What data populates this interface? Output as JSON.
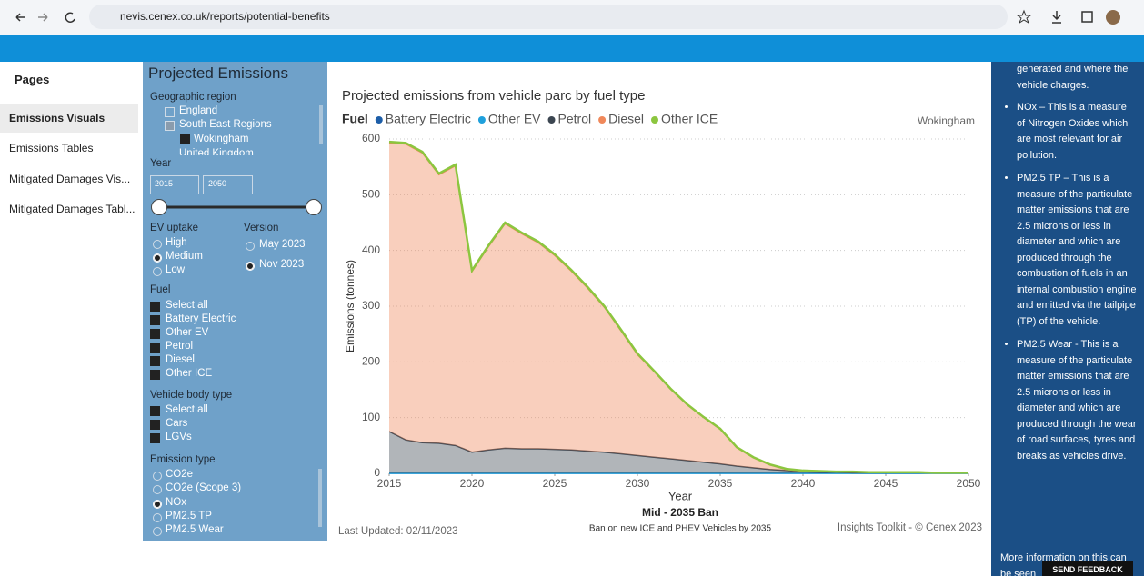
{
  "browser": {
    "url": "nevis.cenex.co.uk/reports/potential-benefits"
  },
  "nav": {
    "title": "Pages",
    "items": [
      "Emissions Visuals",
      "Emissions Tables",
      "Mitigated Damages Vis...",
      "Mitigated Damages Tabl..."
    ]
  },
  "filters": {
    "title": "Projected Emissions",
    "region_label": "Geographic region",
    "regions": [
      "England",
      "South East Regions",
      "Wokingham",
      "United Kingdom"
    ],
    "year_label": "Year",
    "year_from": "2015",
    "year_to": "2050",
    "ev_label": "EV uptake",
    "ev_options": [
      "High",
      "Medium",
      "Low"
    ],
    "version_label": "Version",
    "version_options": [
      "May 2023",
      "Nov 2023"
    ],
    "fuel_label": "Fuel",
    "fuel_options": [
      "Select all",
      "Battery Electric",
      "Other EV",
      "Petrol",
      "Diesel",
      "Other ICE"
    ],
    "body_label": "Vehicle body type",
    "body_options": [
      "Select all",
      "Cars",
      "LGVs"
    ],
    "emission_label": "Emission type",
    "emission_options": [
      "CO2e",
      "CO2e (Scope 3)",
      "NOx",
      "PM2.5 TP",
      "PM2.5 Wear"
    ]
  },
  "info": {
    "intro": "generated and where the vehicle charges.",
    "bullets": [
      "NOx – This is a measure of Nitrogen Oxides which are most relevant for air pollution.",
      "PM2.5 TP – This is a measure of the particulate matter emissions that are 2.5 microns or less in diameter and which are produced through the combustion of fuels in an internal combustion engine and emitted via the tailpipe (TP) of the vehicle.",
      "PM2.5 Wear - This is a measure of the particulate matter emissions that are 2.5 microns or less in diameter and which are produced through the wear of road surfaces, tyres and breaks as vehicles drive."
    ],
    "more": "More information on this can be seen",
    "feedback": "SEND FEEDBACK"
  },
  "chart_data": {
    "type": "area",
    "stacked": true,
    "grid": true,
    "title": "Projected emissions from vehicle parc by fuel type",
    "legend_title": "Fuel",
    "region": "Wokingham",
    "y_label": "Emissions (tonnes)",
    "x_label": "Year",
    "scenario": "Mid - 2035 Ban",
    "scenario_note": "Ban on new ICE and PHEV Vehicles by 2035",
    "updated": "Last Updated: 02/11/2023",
    "credit": "Insights Toolkit - © Cenex 2023",
    "xlim": [
      2015,
      2050
    ],
    "xticks": [
      2015,
      2020,
      2025,
      2030,
      2035,
      2040,
      2045,
      2050
    ],
    "ylim": [
      0,
      600
    ],
    "yticks": [
      0,
      100,
      200,
      300,
      400,
      500,
      600
    ],
    "x": [
      2015,
      2016,
      2017,
      2018,
      2019,
      2020,
      2021,
      2022,
      2023,
      2024,
      2025,
      2026,
      2027,
      2028,
      2029,
      2030,
      2031,
      2032,
      2033,
      2034,
      2035,
      2036,
      2037,
      2038,
      2039,
      2040,
      2041,
      2042,
      2043,
      2044,
      2045,
      2046,
      2047,
      2048,
      2049,
      2050
    ],
    "series": [
      {
        "name": "Battery Electric",
        "color": "#1d5ea8",
        "values": [
          0,
          0,
          0,
          0,
          0,
          0,
          0,
          0,
          0,
          0,
          0,
          0,
          0,
          0,
          0,
          0,
          0,
          0,
          0,
          0,
          0,
          0,
          0,
          0,
          0,
          0,
          0,
          0,
          0,
          0,
          0,
          0,
          0,
          0,
          0,
          0
        ]
      },
      {
        "name": "Other EV",
        "color": "#1fa0dc",
        "values": [
          0,
          0,
          0,
          0,
          0,
          0,
          0,
          0,
          0,
          0,
          0,
          0,
          0,
          0,
          0,
          0,
          0,
          0,
          0,
          0,
          0,
          0,
          0,
          0,
          0,
          0,
          0,
          0,
          0,
          0,
          0,
          0,
          0,
          0,
          0,
          0
        ]
      },
      {
        "name": "Petrol",
        "color": "#3c4651",
        "values": [
          75,
          60,
          55,
          54,
          50,
          38,
          42,
          45,
          44,
          44,
          43,
          42,
          40,
          38,
          35,
          32,
          29,
          26,
          23,
          20,
          17,
          13,
          10,
          7,
          5,
          3,
          2,
          2,
          1,
          1,
          1,
          1,
          1,
          1,
          1,
          1
        ]
      },
      {
        "name": "Diesel",
        "color": "#f0885a",
        "values": [
          518,
          531,
          520,
          482,
          502,
          324,
          365,
          403,
          386,
          370,
          348,
          321,
          292,
          260,
          221,
          181,
          154,
          125,
          100,
          80,
          62,
          33,
          18,
          8,
          2,
          1,
          2,
          1,
          2,
          1,
          1,
          1,
          1,
          0,
          0,
          0
        ]
      },
      {
        "name": "Other ICE",
        "color": "#8cc63f",
        "values": [
          2,
          2,
          2,
          2,
          2,
          2,
          2,
          2,
          2,
          2,
          2,
          2,
          2,
          2,
          2,
          2,
          1,
          1,
          1,
          1,
          1,
          1,
          1,
          1,
          1,
          1,
          0,
          0,
          0,
          0,
          0,
          0,
          0,
          0,
          0,
          0
        ]
      }
    ]
  }
}
